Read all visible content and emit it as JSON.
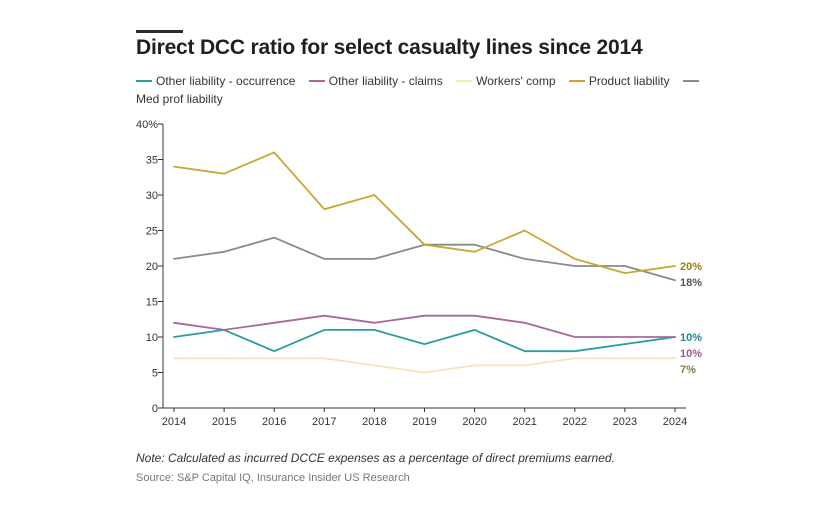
{
  "chart_data": {
    "type": "line",
    "title": "Direct DCC ratio for select casualty lines since 2014",
    "x": [
      2014,
      2015,
      2016,
      2017,
      2018,
      2019,
      2020,
      2021,
      2022,
      2023,
      2024
    ],
    "x_tick_labels": [
      "2014",
      "2015",
      "2016",
      "2017",
      "2018",
      "2019",
      "2020",
      "2021",
      "2022",
      "2023",
      "2024"
    ],
    "y_tick_labels": [
      "40%",
      "35",
      "30",
      "25",
      "20",
      "15",
      "10",
      "5",
      "0"
    ],
    "y_ticks": [
      40,
      35,
      30,
      25,
      20,
      15,
      10,
      5,
      0
    ],
    "ylim": [
      0,
      40
    ],
    "xlabel": "",
    "ylabel": "",
    "grid": false,
    "legend_position": "top",
    "series": [
      {
        "name": "Other liability - occurrence",
        "color": "#2a9d9f",
        "label_color": "#1a8a8c",
        "end_label": "10%",
        "values": [
          10,
          11,
          8,
          11,
          11,
          9,
          11,
          8,
          8,
          9,
          10
        ]
      },
      {
        "name": "Other liability - claims",
        "color": "#a8689c",
        "label_color": "#9a5a8e",
        "end_label": "10%",
        "values": [
          12,
          11,
          12,
          13,
          12,
          13,
          13,
          12,
          10,
          10,
          10
        ]
      },
      {
        "name": "Workers' comp",
        "color": "#f9e3b8",
        "label_color": "#8a7a4a",
        "end_label": "7%",
        "values": [
          7,
          7,
          7,
          7,
          6,
          5,
          6,
          6,
          7,
          7,
          7
        ]
      },
      {
        "name": "Product liability",
        "color": "#c9a731",
        "label_color": "#9c7f10",
        "end_label": "20%",
        "values": [
          34,
          33,
          36,
          28,
          30,
          23,
          22,
          25,
          21,
          19,
          20
        ]
      },
      {
        "name": "Med prof liability",
        "color": "#8a8a8a",
        "label_color": "#555555",
        "end_label": "18%",
        "values": [
          21,
          22,
          24,
          21,
          21,
          23,
          23,
          21,
          20,
          20,
          18
        ]
      }
    ]
  },
  "note": "Note: Calculated as incurred DCCE expenses as a percentage of direct premiums earned.",
  "source": "Source: S&P Capital IQ, Insurance Insider US Research"
}
